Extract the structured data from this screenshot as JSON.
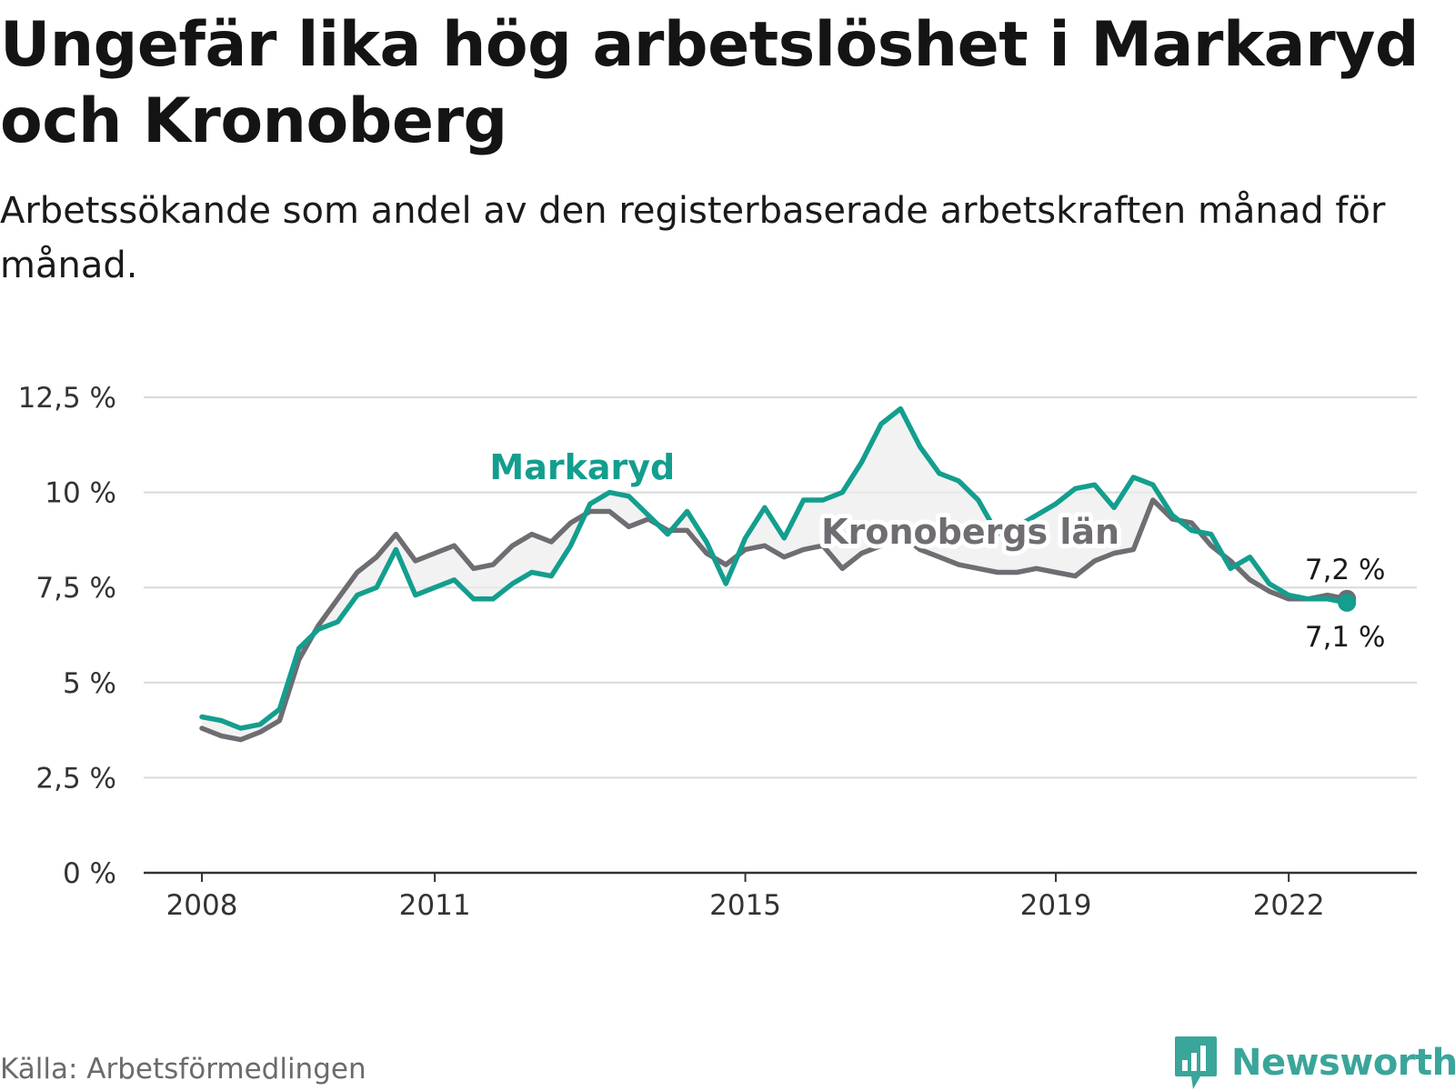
{
  "title": "Ungefär lika hög arbetslöshet i Markaryd och Kronoberg",
  "subtitle": "Arbetssökande som andel av den registerbaserade arbetskraften månad för månad.",
  "source": "Källa: Arbetsförmedlingen",
  "brand": {
    "name": "Newsworthy",
    "color": "#3aa59a"
  },
  "chart_data": {
    "type": "line",
    "ylim": [
      0,
      12.5
    ],
    "y_ticks": [
      {
        "value": 0,
        "label": "0 %"
      },
      {
        "value": 2.5,
        "label": "2,5 %"
      },
      {
        "value": 5,
        "label": "5 %"
      },
      {
        "value": 7.5,
        "label": "7,5 %"
      },
      {
        "value": 10,
        "label": "10 %"
      },
      {
        "value": 12.5,
        "label": "12,5 %"
      }
    ],
    "x_ticks": [
      {
        "value": 2008,
        "label": "2008"
      },
      {
        "value": 2011,
        "label": "2011"
      },
      {
        "value": 2015,
        "label": "2015"
      },
      {
        "value": 2019,
        "label": "2019"
      },
      {
        "value": 2022,
        "label": "2022"
      }
    ],
    "xlim": [
      2007.25,
      2023.65
    ],
    "grid": true,
    "series": [
      {
        "name": "Markaryd",
        "color": "#139e8e",
        "end_label": "7,1 %",
        "points": [
          [
            2008.0,
            4.1
          ],
          [
            2008.25,
            4.0
          ],
          [
            2008.5,
            3.8
          ],
          [
            2008.75,
            3.9
          ],
          [
            2009.0,
            4.3
          ],
          [
            2009.25,
            5.9
          ],
          [
            2009.5,
            6.4
          ],
          [
            2009.75,
            6.6
          ],
          [
            2010.0,
            7.3
          ],
          [
            2010.25,
            7.5
          ],
          [
            2010.5,
            8.5
          ],
          [
            2010.75,
            7.3
          ],
          [
            2011.0,
            7.5
          ],
          [
            2011.25,
            7.7
          ],
          [
            2011.5,
            7.2
          ],
          [
            2011.75,
            7.2
          ],
          [
            2012.0,
            7.6
          ],
          [
            2012.25,
            7.9
          ],
          [
            2012.5,
            7.8
          ],
          [
            2012.75,
            8.6
          ],
          [
            2013.0,
            9.7
          ],
          [
            2013.25,
            10.0
          ],
          [
            2013.5,
            9.9
          ],
          [
            2013.75,
            9.4
          ],
          [
            2014.0,
            8.9
          ],
          [
            2014.25,
            9.5
          ],
          [
            2014.5,
            8.7
          ],
          [
            2014.75,
            7.6
          ],
          [
            2015.0,
            8.8
          ],
          [
            2015.25,
            9.6
          ],
          [
            2015.5,
            8.8
          ],
          [
            2015.75,
            9.8
          ],
          [
            2016.0,
            9.8
          ],
          [
            2016.25,
            10.0
          ],
          [
            2016.5,
            10.8
          ],
          [
            2016.75,
            11.8
          ],
          [
            2017.0,
            12.2
          ],
          [
            2017.25,
            11.2
          ],
          [
            2017.5,
            10.5
          ],
          [
            2017.75,
            10.3
          ],
          [
            2018.0,
            9.8
          ],
          [
            2018.25,
            8.9
          ],
          [
            2018.5,
            9.1
          ],
          [
            2018.75,
            9.4
          ],
          [
            2019.0,
            9.7
          ],
          [
            2019.25,
            10.1
          ],
          [
            2019.5,
            10.2
          ],
          [
            2019.75,
            9.6
          ],
          [
            2020.0,
            10.4
          ],
          [
            2020.25,
            10.2
          ],
          [
            2020.5,
            9.4
          ],
          [
            2020.75,
            9.0
          ],
          [
            2021.0,
            8.9
          ],
          [
            2021.25,
            8.0
          ],
          [
            2021.5,
            8.3
          ],
          [
            2021.75,
            7.6
          ],
          [
            2022.0,
            7.3
          ],
          [
            2022.25,
            7.2
          ],
          [
            2022.5,
            7.2
          ],
          [
            2022.75,
            7.1
          ]
        ]
      },
      {
        "name": "Kronobergs län",
        "color": "#6f6c72",
        "end_label": "7,2 %",
        "points": [
          [
            2008.0,
            3.8
          ],
          [
            2008.25,
            3.6
          ],
          [
            2008.5,
            3.5
          ],
          [
            2008.75,
            3.7
          ],
          [
            2009.0,
            4.0
          ],
          [
            2009.25,
            5.6
          ],
          [
            2009.5,
            6.5
          ],
          [
            2009.75,
            7.2
          ],
          [
            2010.0,
            7.9
          ],
          [
            2010.25,
            8.3
          ],
          [
            2010.5,
            8.9
          ],
          [
            2010.75,
            8.2
          ],
          [
            2011.0,
            8.4
          ],
          [
            2011.25,
            8.6
          ],
          [
            2011.5,
            8.0
          ],
          [
            2011.75,
            8.1
          ],
          [
            2012.0,
            8.6
          ],
          [
            2012.25,
            8.9
          ],
          [
            2012.5,
            8.7
          ],
          [
            2012.75,
            9.2
          ],
          [
            2013.0,
            9.5
          ],
          [
            2013.25,
            9.5
          ],
          [
            2013.5,
            9.1
          ],
          [
            2013.75,
            9.3
          ],
          [
            2014.0,
            9.0
          ],
          [
            2014.25,
            9.0
          ],
          [
            2014.5,
            8.4
          ],
          [
            2014.75,
            8.1
          ],
          [
            2015.0,
            8.5
          ],
          [
            2015.25,
            8.6
          ],
          [
            2015.5,
            8.3
          ],
          [
            2015.75,
            8.5
          ],
          [
            2016.0,
            8.6
          ],
          [
            2016.25,
            8.0
          ],
          [
            2016.5,
            8.4
          ],
          [
            2016.75,
            8.6
          ],
          [
            2017.0,
            8.9
          ],
          [
            2017.25,
            8.5
          ],
          [
            2017.5,
            8.3
          ],
          [
            2017.75,
            8.1
          ],
          [
            2018.0,
            8.0
          ],
          [
            2018.25,
            7.9
          ],
          [
            2018.5,
            7.9
          ],
          [
            2018.75,
            8.0
          ],
          [
            2019.0,
            7.9
          ],
          [
            2019.25,
            7.8
          ],
          [
            2019.5,
            8.2
          ],
          [
            2019.75,
            8.4
          ],
          [
            2020.0,
            8.5
          ],
          [
            2020.25,
            9.8
          ],
          [
            2020.5,
            9.3
          ],
          [
            2020.75,
            9.2
          ],
          [
            2021.0,
            8.6
          ],
          [
            2021.25,
            8.2
          ],
          [
            2021.5,
            7.7
          ],
          [
            2021.75,
            7.4
          ],
          [
            2022.0,
            7.2
          ],
          [
            2022.25,
            7.2
          ],
          [
            2022.5,
            7.3
          ],
          [
            2022.75,
            7.2
          ]
        ]
      }
    ],
    "series_labels": [
      {
        "series": 0,
        "text": "Markaryd",
        "x": 2012.9,
        "y": 10.35
      },
      {
        "series": 1,
        "text": "Kronobergs län",
        "x": 2017.9,
        "y": 8.65
      }
    ]
  }
}
